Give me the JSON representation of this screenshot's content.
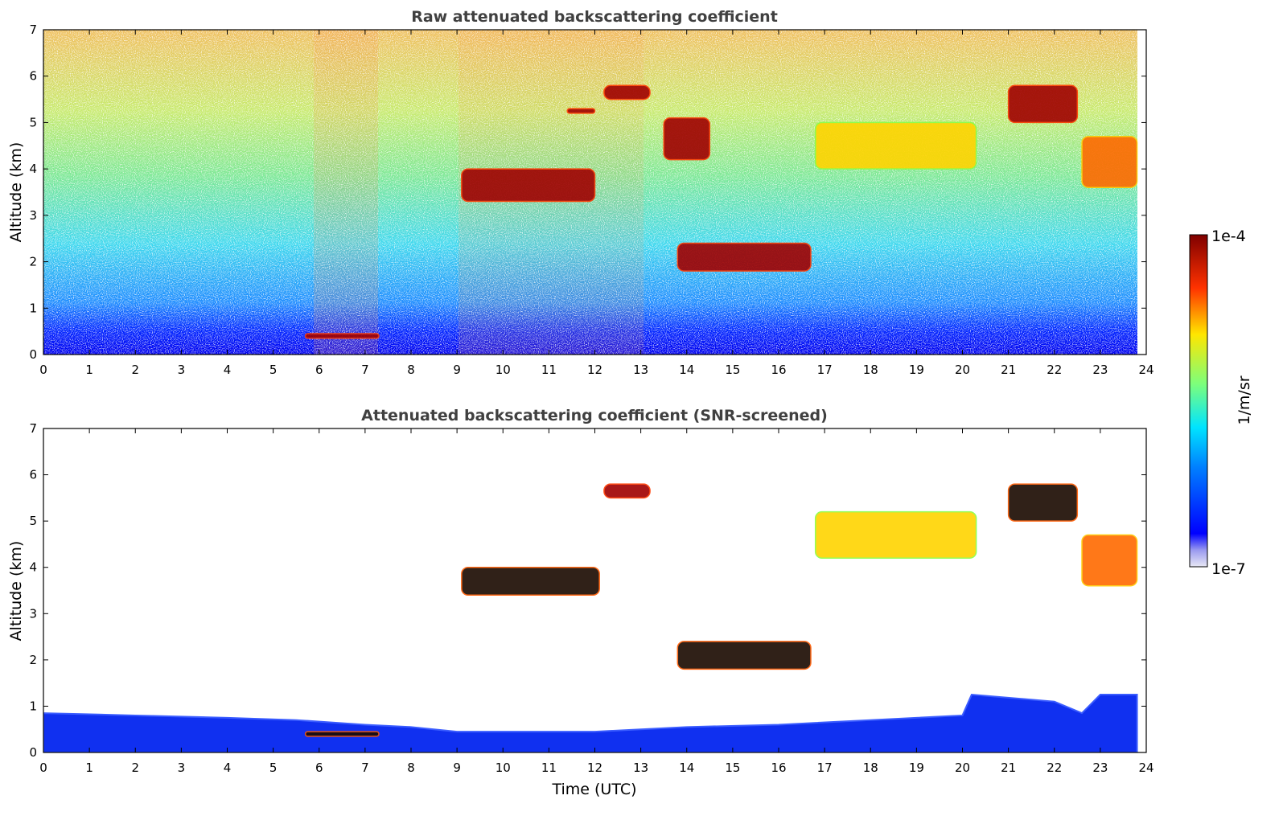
{
  "chart_data": [
    {
      "type": "heatmap",
      "title": "Raw attenuated backscattering coefficient",
      "xlabel": "",
      "ylabel": "Altitude (km)",
      "xlim": [
        0,
        24
      ],
      "ylim": [
        0,
        7
      ],
      "x_ticks": [
        "0",
        "1",
        "2",
        "3",
        "4",
        "5",
        "6",
        "7",
        "8",
        "9",
        "10",
        "11",
        "12",
        "13",
        "14",
        "15",
        "16",
        "17",
        "18",
        "19",
        "20",
        "21",
        "22",
        "23",
        "24"
      ],
      "y_ticks": [
        "0",
        "1",
        "2",
        "3",
        "4",
        "5",
        "6",
        "7"
      ],
      "background": "noisy signal: dense blue below ~1 km, cyan/green 1–4 km, yellow/orange/red speckle above 4 km",
      "features": [
        {
          "t": [
            5.7,
            7.3
          ],
          "alt": [
            0.35,
            0.45
          ],
          "level": "high"
        },
        {
          "t": [
            9.1,
            12.0
          ],
          "alt": [
            3.3,
            4.0
          ],
          "level": "high"
        },
        {
          "t": [
            12.2,
            13.2
          ],
          "alt": [
            5.5,
            5.8
          ],
          "level": "high"
        },
        {
          "t": [
            11.4,
            12.0
          ],
          "alt": [
            5.2,
            5.3
          ],
          "level": "high"
        },
        {
          "t": [
            13.5,
            14.5
          ],
          "alt": [
            4.2,
            5.1
          ],
          "level": "high"
        },
        {
          "t": [
            13.8,
            16.7
          ],
          "alt": [
            1.8,
            2.4
          ],
          "level": "high"
        },
        {
          "t": [
            16.8,
            20.3
          ],
          "alt": [
            4.0,
            5.0
          ],
          "level": "medium"
        },
        {
          "t": [
            21.0,
            22.5
          ],
          "alt": [
            5.0,
            5.8
          ],
          "level": "high"
        },
        {
          "t": [
            22.6,
            23.8
          ],
          "alt": [
            3.6,
            4.7
          ],
          "level": "medium-high"
        }
      ]
    },
    {
      "type": "heatmap",
      "title": "Attenuated backscattering coefficient (SNR-screened)",
      "xlabel": "Time (UTC)",
      "ylabel": "Altitude (km)",
      "xlim": [
        0,
        24
      ],
      "ylim": [
        0,
        7
      ],
      "x_ticks": [
        "0",
        "1",
        "2",
        "3",
        "4",
        "5",
        "6",
        "7",
        "8",
        "9",
        "10",
        "11",
        "12",
        "13",
        "14",
        "15",
        "16",
        "17",
        "18",
        "19",
        "20",
        "21",
        "22",
        "23",
        "24"
      ],
      "y_ticks": [
        "0",
        "1",
        "2",
        "3",
        "4",
        "5",
        "6",
        "7"
      ],
      "boundary_layer_top_km": [
        [
          0,
          0.85
        ],
        [
          2,
          0.8
        ],
        [
          4,
          0.75
        ],
        [
          5.5,
          0.7
        ],
        [
          7,
          0.6
        ],
        [
          8,
          0.55
        ],
        [
          9,
          0.45
        ],
        [
          10,
          0.45
        ],
        [
          12,
          0.45
        ],
        [
          14,
          0.55
        ],
        [
          16,
          0.6
        ],
        [
          18,
          0.7
        ],
        [
          20,
          0.8
        ],
        [
          20.2,
          1.25
        ],
        [
          22,
          1.1
        ],
        [
          22.6,
          0.85
        ],
        [
          23,
          1.25
        ],
        [
          23.8,
          1.25
        ]
      ],
      "features": [
        {
          "t": [
            5.7,
            7.3
          ],
          "alt": [
            0.35,
            0.45
          ],
          "level": "saturated"
        },
        {
          "t": [
            9.1,
            12.1
          ],
          "alt": [
            3.4,
            4.0
          ],
          "level": "saturated"
        },
        {
          "t": [
            12.2,
            13.2
          ],
          "alt": [
            5.5,
            5.8
          ],
          "level": "high"
        },
        {
          "t": [
            13.8,
            16.7
          ],
          "alt": [
            1.8,
            2.4
          ],
          "level": "saturated"
        },
        {
          "t": [
            16.8,
            20.3
          ],
          "alt": [
            4.2,
            5.2
          ],
          "level": "medium"
        },
        {
          "t": [
            21.0,
            22.5
          ],
          "alt": [
            5.0,
            5.8
          ],
          "level": "saturated"
        },
        {
          "t": [
            22.6,
            23.8
          ],
          "alt": [
            3.6,
            4.7
          ],
          "level": "medium-high"
        }
      ]
    }
  ],
  "colorbar": {
    "label": "1/m/sr",
    "min_label": "1e-7",
    "max_label": "1e-4",
    "scale": "log",
    "colors": [
      "#e8e8f4",
      "#0000ff",
      "#00e4ff",
      "#7cff7c",
      "#ffe600",
      "#ff3200",
      "#7f0000"
    ]
  }
}
